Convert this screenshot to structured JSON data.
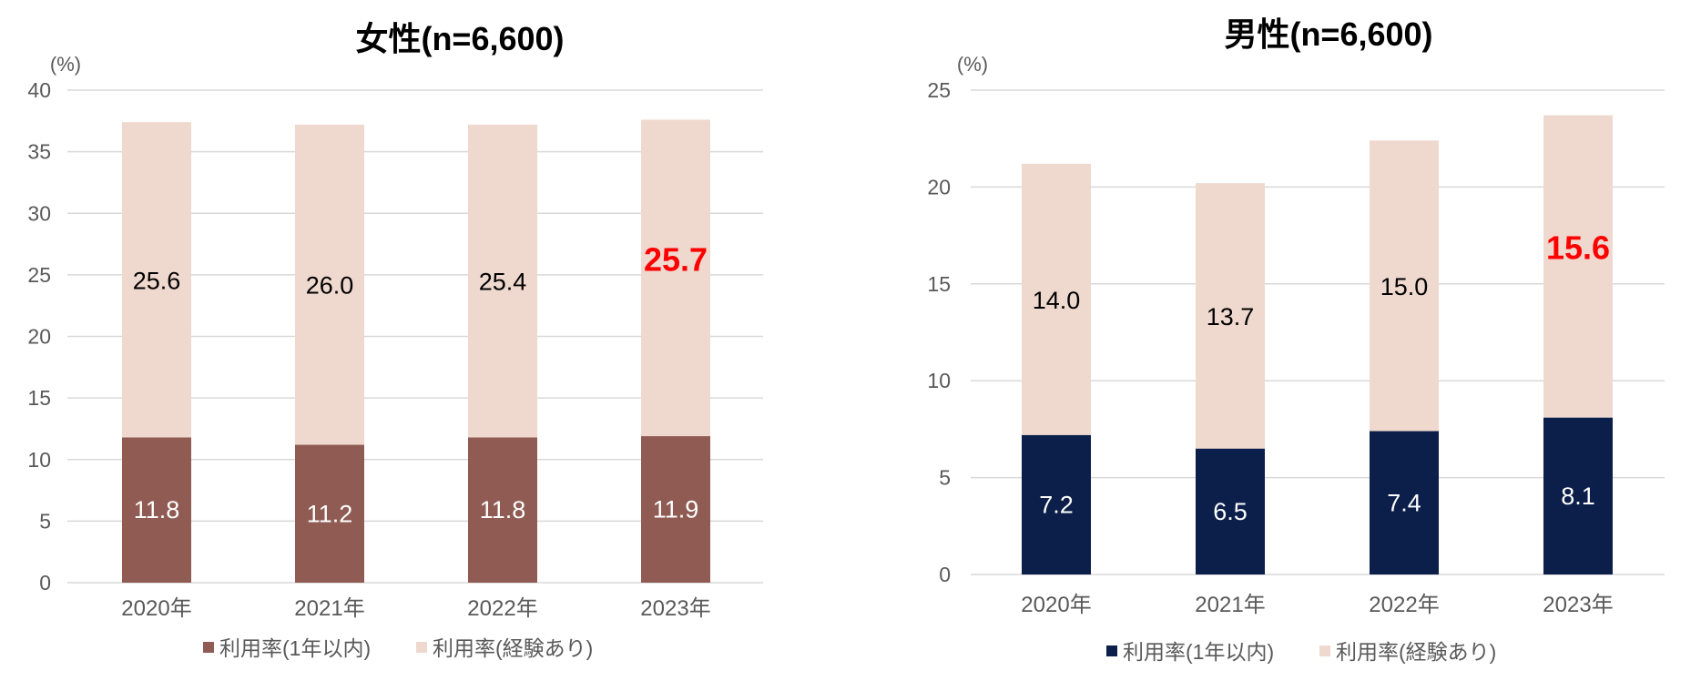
{
  "colors": {
    "female_base": "#8f5b53",
    "male_base": "#0b1f4a",
    "experience": "#efd9cf",
    "grid": "#d9d9d9",
    "axis_text": "#595959",
    "highlight": "#ff0000"
  },
  "chart_data": [
    {
      "type": "bar",
      "stacked": true,
      "title": "女性(n=6,600)",
      "unit_label": "(%)",
      "categories": [
        "2020年",
        "2021年",
        "2022年",
        "2023年"
      ],
      "ylim": [
        0,
        40
      ],
      "yticks": [
        "0",
        "5",
        "10",
        "15",
        "20",
        "25",
        "30",
        "35",
        "40"
      ],
      "series": [
        {
          "name": "利用率(1年以内)",
          "values": [
            11.8,
            11.2,
            11.8,
            11.9
          ],
          "labels": [
            "11.8",
            "11.2",
            "11.8",
            "11.9"
          ]
        },
        {
          "name": "利用率(経験あり)",
          "values": [
            25.6,
            26.0,
            25.4,
            25.7
          ],
          "labels": [
            "25.6",
            "26.0",
            "25.4",
            "25.7"
          ]
        }
      ],
      "highlight_index": 3,
      "legend": [
        "利用率(1年以内)",
        "利用率(経験あり)"
      ]
    },
    {
      "type": "bar",
      "stacked": true,
      "title": "男性(n=6,600)",
      "unit_label": "(%)",
      "categories": [
        "2020年",
        "2021年",
        "2022年",
        "2023年"
      ],
      "ylim": [
        0,
        25
      ],
      "yticks": [
        "0",
        "5",
        "10",
        "15",
        "20",
        "25"
      ],
      "series": [
        {
          "name": "利用率(1年以内)",
          "values": [
            7.2,
            6.5,
            7.4,
            8.1
          ],
          "labels": [
            "7.2",
            "6.5",
            "7.4",
            "8.1"
          ]
        },
        {
          "name": "利用率(経験あり)",
          "values": [
            14.0,
            13.7,
            15.0,
            15.6
          ],
          "labels": [
            "14.0",
            "13.7",
            "15.0",
            "15.6"
          ]
        }
      ],
      "highlight_index": 3,
      "legend": [
        "利用率(1年以内)",
        "利用率(経験あり)"
      ]
    }
  ]
}
